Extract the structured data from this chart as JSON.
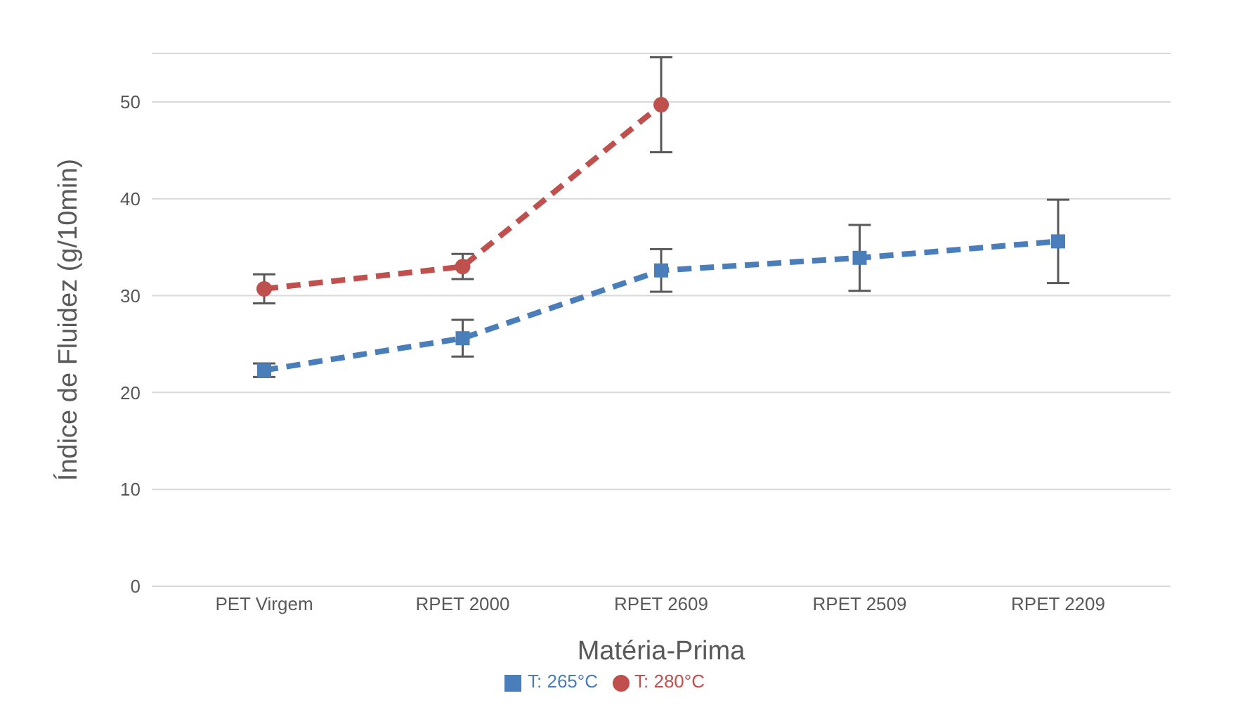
{
  "chart_data": {
    "type": "line",
    "xlabel": "Matéria-Prima",
    "ylabel": "Índice de Fluidez (g/10min)",
    "categories": [
      "PET Virgem",
      "RPET 2000",
      "RPET 2609",
      "RPET 2509",
      "RPET 2209"
    ],
    "series": [
      {
        "name": "T: 265°C",
        "color": "#4a7ebb",
        "marker": "square",
        "values": [
          22.3,
          25.6,
          32.6,
          33.9,
          35.6
        ],
        "errors": [
          0.7,
          1.9,
          2.2,
          3.4,
          4.3
        ]
      },
      {
        "name": "T: 280°C",
        "color": "#c0504d",
        "marker": "circle",
        "values": [
          30.7,
          33.0,
          49.7,
          null,
          null
        ],
        "errors": [
          1.5,
          1.3,
          4.9,
          null,
          null
        ]
      }
    ],
    "ylim": [
      0,
      55
    ],
    "yticks": [
      0,
      10,
      20,
      30,
      40,
      50
    ],
    "grid": "y",
    "legend": "bottom",
    "line_style": "dashed"
  }
}
